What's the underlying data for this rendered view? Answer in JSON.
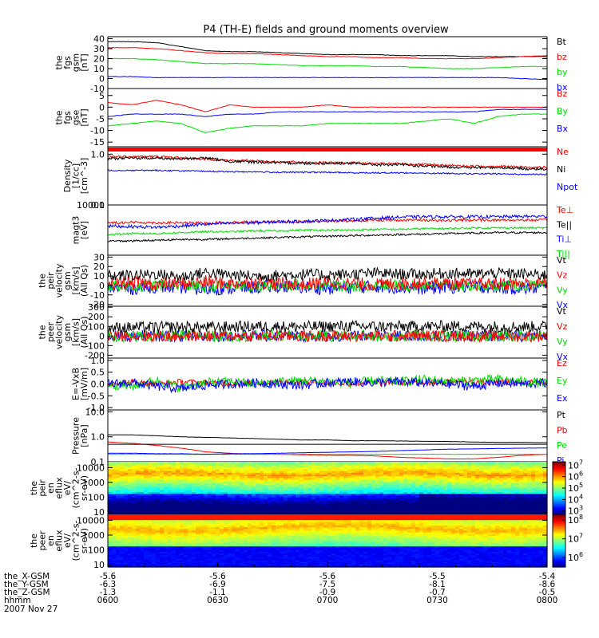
{
  "title": "P4 (TH-E) fields and ground moments overview",
  "colors": {
    "black": "#000000",
    "red": "#ff0000",
    "green": "#00dd00",
    "blue": "#0000ff"
  },
  "chart_data": [
    {
      "type": "line",
      "panel": "fgs_gsm",
      "ylabel": [
        "the",
        "fgs",
        "gsm",
        "[nT]"
      ],
      "ylim": [
        -10,
        42
      ],
      "yticks": [
        "40",
        "30",
        "20",
        "10",
        "0",
        "-10"
      ],
      "ytick_values": [
        40,
        30,
        20,
        10,
        0,
        -10
      ],
      "series": [
        {
          "name": "Bt",
          "color": "#000000",
          "values": [
            37,
            37,
            36,
            32,
            28,
            27,
            27,
            26,
            25,
            24,
            24,
            24,
            23,
            23,
            23,
            22,
            22,
            22,
            22
          ]
        },
        {
          "name": "bz",
          "color": "#ff0000",
          "values": [
            31,
            31,
            30,
            28,
            26,
            25,
            25,
            24,
            23,
            22,
            22,
            21,
            21,
            20,
            20,
            20,
            21,
            22,
            23
          ]
        },
        {
          "name": "by",
          "color": "#00dd00",
          "values": [
            20,
            20,
            19,
            17,
            15,
            15,
            15,
            14,
            13,
            13,
            13,
            12,
            12,
            11,
            10,
            10,
            11,
            12,
            12
          ]
        },
        {
          "name": "bx",
          "color": "#0000ff",
          "values": [
            2,
            2,
            1,
            1,
            1,
            1,
            1,
            1,
            1,
            1,
            1,
            1,
            1,
            1,
            1,
            1,
            1,
            0,
            -1
          ]
        }
      ]
    },
    {
      "type": "line",
      "panel": "fgs_gse",
      "ylabel": [
        "the",
        "fgs",
        "gse",
        "[nT]"
      ],
      "ylim": [
        -17,
        8
      ],
      "yticks": [
        "5",
        "0",
        "-5",
        "-10",
        "-15"
      ],
      "ytick_values": [
        5,
        0,
        -5,
        -10,
        -15
      ],
      "series": [
        {
          "name": "Bz",
          "color": "#ff0000",
          "values": [
            2,
            1,
            3,
            1,
            -2,
            1,
            0,
            0,
            0,
            1,
            0,
            0,
            0,
            0,
            0,
            0,
            0,
            0,
            0
          ]
        },
        {
          "name": "By",
          "color": "#00dd00",
          "values": [
            -8,
            -7,
            -6,
            -7,
            -11,
            -9,
            -8,
            -8,
            -8,
            -7,
            -7,
            -7,
            -7,
            -6,
            -5,
            -7,
            -4,
            -3,
            -3
          ]
        },
        {
          "name": "Bx",
          "color": "#0000ff",
          "values": [
            -4,
            -3,
            -3,
            -3,
            -4,
            -3,
            -3,
            -2,
            -2,
            -2,
            -2,
            -2,
            -2,
            -2,
            -2,
            -2,
            -1,
            -1,
            -1
          ]
        }
      ]
    },
    {
      "type": "line",
      "panel": "density",
      "yscale": "log",
      "ylabel": [
        "Density",
        "[1/cc]",
        "[cm^-3]"
      ],
      "ylim": [
        0.1,
        1.4
      ],
      "yticks": [
        "1.0",
        "0.1"
      ],
      "ytick_values": [
        1.0,
        0.1
      ],
      "series": [
        {
          "name": "Ne",
          "color": "#ff0000",
          "values": [
            0.9,
            0.9,
            0.9,
            0.85,
            0.8,
            0.75,
            0.75,
            0.7,
            0.7,
            0.68,
            0.68,
            0.65,
            0.65,
            0.62,
            0.6,
            0.58,
            0.58,
            0.56,
            0.55
          ]
        },
        {
          "name": "Ni",
          "color": "#000000",
          "values": [
            0.82,
            0.84,
            0.84,
            0.8,
            0.85,
            0.72,
            0.7,
            0.68,
            0.66,
            0.66,
            0.66,
            0.62,
            0.62,
            0.58,
            0.56,
            0.54,
            0.55,
            0.52,
            0.5
          ]
        },
        {
          "name": "Npot",
          "color": "#0000ff",
          "values": [
            0.48,
            0.48,
            0.48,
            0.47,
            0.46,
            0.45,
            0.45,
            0.44,
            0.44,
            0.44,
            0.43,
            0.43,
            0.43,
            0.42,
            0.42,
            0.41,
            0.41,
            0.4,
            0.4
          ]
        }
      ]
    },
    {
      "type": "line",
      "panel": "temperature",
      "yscale": "log",
      "ylabel": [
        "magt3",
        "[eV]"
      ],
      "ylim": [
        400,
        10000
      ],
      "yticks": [
        "10000"
      ],
      "ytick_values": [
        10000
      ],
      "series": [
        {
          "name": "Te⊥",
          "color": "#ff0000",
          "values": [
            3200,
            3300,
            3200,
            3200,
            3100,
            3300,
            3400,
            3400,
            3400,
            3600,
            3600,
            3800,
            3800,
            3800,
            3700,
            3800,
            3800,
            3800,
            3800
          ]
        },
        {
          "name": "Te||",
          "color": "#000000",
          "values": [
            1000,
            1000,
            1050,
            1100,
            1100,
            1150,
            1200,
            1250,
            1300,
            1350,
            1400,
            1450,
            1500,
            1550,
            1600,
            1650,
            1700,
            1700,
            1700
          ]
        },
        {
          "name": "Ti⊥",
          "color": "#0000ff",
          "values": [
            2600,
            2500,
            2400,
            2600,
            2900,
            3100,
            3200,
            3400,
            3500,
            3700,
            4000,
            4300,
            4600,
            4700,
            4700,
            4700,
            4700,
            4800,
            4800
          ]
        },
        {
          "name": "Ti||",
          "color": "#00dd00",
          "values": [
            1500,
            1600,
            1600,
            1700,
            1800,
            1800,
            1900,
            1900,
            2000,
            2000,
            2000,
            2100,
            2100,
            2200,
            2200,
            2300,
            2300,
            2300,
            2300
          ]
        }
      ]
    },
    {
      "type": "line",
      "panel": "peir_velocity",
      "ylabel": [
        "the",
        "peir",
        "velocity",
        "gsm",
        "[km/s]",
        "(All Qs)"
      ],
      "ylim": [
        -22,
        32
      ],
      "yticks": [
        "30",
        "20",
        "10",
        "0",
        "-10",
        "-20"
      ],
      "ytick_values": [
        30,
        20,
        10,
        0,
        -10,
        -20
      ],
      "series": [
        {
          "name": "Vt",
          "color": "#000000",
          "values": [
            10,
            11,
            12,
            9,
            14,
            11,
            10,
            11,
            12,
            11,
            12,
            13,
            12,
            12,
            13,
            12,
            13,
            12,
            11
          ]
        },
        {
          "name": "Vz",
          "color": "#ff0000",
          "values": [
            2,
            3,
            1,
            2,
            4,
            2,
            3,
            2,
            1,
            3,
            2,
            1,
            2,
            3,
            2,
            1,
            2,
            2,
            3
          ]
        },
        {
          "name": "Vy",
          "color": "#00dd00",
          "values": [
            0,
            -1,
            0,
            1,
            -2,
            0,
            -1,
            0,
            1,
            0,
            -1,
            0,
            0,
            1,
            0,
            -1,
            0,
            0,
            0
          ]
        },
        {
          "name": "Vx",
          "color": "#0000ff",
          "values": [
            -2,
            -3,
            -1,
            -2,
            -4,
            -3,
            -2,
            -1,
            -2,
            -3,
            -2,
            -1,
            -2,
            -3,
            -2,
            -1,
            -2,
            -3,
            -2
          ]
        }
      ]
    },
    {
      "type": "line",
      "panel": "peer_velocity",
      "ylabel": [
        "the",
        "peer",
        "velocity",
        "gsm",
        "[km/s]",
        "(All Qs)"
      ],
      "ylim": [
        -230,
        310
      ],
      "yticks": [
        "300",
        "200",
        "100",
        "0",
        "-100",
        "-200"
      ],
      "ytick_values": [
        300,
        200,
        100,
        0,
        -100,
        -200
      ],
      "series": [
        {
          "name": "Vt",
          "color": "#000000",
          "values": [
            85,
            90,
            92,
            95,
            90,
            95,
            100,
            98,
            96,
            100,
            102,
            100,
            98,
            100,
            102,
            100,
            98,
            96,
            100
          ]
        },
        {
          "name": "Vz",
          "color": "#ff0000",
          "values": [
            0,
            2,
            -3,
            4,
            0,
            -2,
            3,
            0,
            -1,
            2,
            0,
            -2,
            1,
            3,
            -1,
            0,
            2,
            -2,
            0
          ]
        },
        {
          "name": "Vy",
          "color": "#00dd00",
          "values": [
            0,
            -2,
            3,
            0,
            2,
            0,
            -3,
            2,
            0,
            -1,
            3,
            0,
            -2,
            0,
            1,
            2,
            0,
            1,
            -1
          ]
        },
        {
          "name": "Vx",
          "color": "#0000ff",
          "values": [
            -3,
            0,
            2,
            -2,
            0,
            3,
            0,
            -2,
            1,
            0,
            -3,
            2,
            0,
            -1,
            0,
            2,
            -2,
            0,
            1
          ]
        }
      ]
    },
    {
      "type": "line",
      "panel": "efield",
      "ylabel": [
        "E=-VxB",
        "[mV/m]"
      ],
      "ylim": [
        -1.1,
        1.1
      ],
      "yticks": [
        "1.0",
        "0.5",
        "0.0",
        "-0.5",
        "-1.0"
      ],
      "ytick_values": [
        1.0,
        0.5,
        0.0,
        -0.5,
        -1.0
      ],
      "series": [
        {
          "name": "Ez",
          "color": "#ff0000",
          "values": [
            0.05,
            0.08,
            0.0,
            0.1,
            0.05,
            0.02,
            0.05,
            0.08,
            0.1,
            0.05,
            0.02,
            0.06,
            0.04,
            0.05,
            0.1,
            0.08,
            0.06,
            0.05,
            0.08
          ]
        },
        {
          "name": "Ey",
          "color": "#00dd00",
          "values": [
            0.0,
            -0.1,
            0.15,
            -0.15,
            0.05,
            0.1,
            0.0,
            0.1,
            0.15,
            0.1,
            0.05,
            0.15,
            0.1,
            0.2,
            0.1,
            0.15,
            0.2,
            0.1,
            0.05
          ]
        },
        {
          "name": "Ex",
          "color": "#0000ff",
          "values": [
            0.0,
            0.05,
            -0.1,
            -0.2,
            -0.05,
            0.0,
            0.05,
            0.0,
            -0.05,
            0.05,
            0.1,
            0.05,
            0.1,
            0.05,
            0.0,
            -0.1,
            0.05,
            0.0,
            0.05
          ]
        }
      ]
    },
    {
      "type": "line",
      "panel": "pressure",
      "yscale": "log",
      "ylabel": [
        "Pressure",
        "[nPa]"
      ],
      "ylim": [
        0.1,
        12
      ],
      "yticks": [
        "10.0",
        "1.0",
        "0.1"
      ],
      "ytick_values": [
        10.0,
        1.0,
        0.1
      ],
      "series": [
        {
          "name": "Pt",
          "color": "#000000",
          "values": [
            1.2,
            1.2,
            1.1,
            1.0,
            0.95,
            0.9,
            0.85,
            0.8,
            0.75,
            0.75,
            0.7,
            0.7,
            0.68,
            0.66,
            0.65,
            0.62,
            0.6,
            0.6,
            0.58
          ]
        },
        {
          "name": "Pb",
          "color": "#ff0000",
          "values": [
            0.62,
            0.55,
            0.45,
            0.35,
            0.25,
            0.22,
            0.2,
            0.2,
            0.19,
            0.18,
            0.18,
            0.17,
            0.15,
            0.14,
            0.13,
            0.13,
            0.15,
            0.18,
            0.2
          ]
        },
        {
          "name": "Pe",
          "color": "#00dd00",
          "values": [
            0.2,
            0.2,
            0.2,
            0.2,
            0.2,
            0.2,
            0.2,
            0.2,
            0.2,
            0.2,
            0.2,
            0.2,
            0.2,
            0.2,
            0.2,
            0.2,
            0.2,
            0.2,
            0.2
          ]
        },
        {
          "name": "Pi",
          "color": "#0000ff",
          "values": [
            0.22,
            0.22,
            0.21,
            0.21,
            0.2,
            0.21,
            0.21,
            0.22,
            0.23,
            0.24,
            0.25,
            0.26,
            0.28,
            0.3,
            0.32,
            0.33,
            0.34,
            0.35,
            0.36
          ]
        }
      ]
    },
    {
      "type": "heatmap",
      "panel": "peir_eflux",
      "yscale": "log",
      "ylabel": [
        "the",
        "peir",
        "en",
        "eflux",
        "eV/",
        "(cm^2-s-",
        "sr-eV)"
      ],
      "ylim": [
        7,
        25000
      ],
      "yticks": [
        "10000",
        "1000",
        "100",
        "10"
      ],
      "ytick_values": [
        10000,
        1000,
        100,
        10
      ],
      "colorbar": {
        "ticks": [
          {
            "base": "10",
            "exp": "7"
          },
          {
            "base": "10",
            "exp": "6"
          },
          {
            "base": "10",
            "exp": "5"
          },
          {
            "base": "10",
            "exp": "4"
          },
          {
            "base": "10",
            "exp": "3"
          }
        ],
        "tick_exponents": [
          7,
          6,
          5,
          4,
          3
        ],
        "range_exp": [
          2.7,
          7.3
        ]
      }
    },
    {
      "type": "heatmap",
      "panel": "peer_eflux",
      "yscale": "log",
      "ylabel": [
        "the",
        "peer",
        "en",
        "eflux",
        "eV/",
        "(cm^2-s-",
        "sr-eV)"
      ],
      "ylim": [
        7,
        25000
      ],
      "yticks": [
        "10000",
        "1000",
        "100",
        "10"
      ],
      "ytick_values": [
        10000,
        1000,
        100,
        10
      ],
      "colorbar": {
        "ticks": [
          {
            "base": "10",
            "exp": "8"
          },
          {
            "base": "10",
            "exp": "7"
          },
          {
            "base": "10",
            "exp": "6"
          }
        ],
        "tick_exponents": [
          8,
          7,
          6
        ],
        "range_exp": [
          5.5,
          8.3
        ]
      }
    }
  ],
  "xaxis": {
    "rows": [
      {
        "label": "the_X-GSM",
        "values": [
          "-5.6",
          "-5.6",
          "-5.6",
          "-5.5",
          "-5.4"
        ]
      },
      {
        "label": "the_Y-GSM",
        "values": [
          "-6.3",
          "-6.9",
          "-7.5",
          "-8.1",
          "-8.6"
        ]
      },
      {
        "label": "the_Z-GSM",
        "values": [
          "-1.3",
          "-1.1",
          "-0.9",
          "-0.7",
          "-0.5"
        ]
      },
      {
        "label": "hhmm",
        "values": [
          "0600",
          "0630",
          "0700",
          "0730",
          "0800"
        ]
      }
    ],
    "date": "2007 Nov 27"
  }
}
